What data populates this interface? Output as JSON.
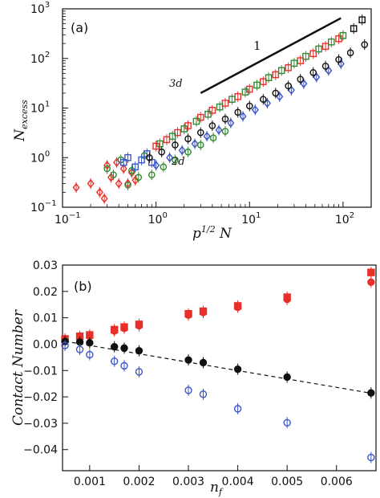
{
  "chart_data": [
    {
      "type": "scatter",
      "panel_label": "(a)",
      "xlabel_base": "p",
      "xlabel_sup": "1/2",
      "xlabel_tail": " N",
      "ylabel_main": "N",
      "ylabel_sub": "excess",
      "xscale": "log",
      "yscale": "log",
      "xlim": [
        0.1,
        200
      ],
      "ylim": [
        0.1,
        1000
      ],
      "xticks": [
        {
          "value": 0.1,
          "base": "10",
          "exp": "−1"
        },
        {
          "value": 1,
          "base": "10",
          "exp": "0"
        },
        {
          "value": 10,
          "base": "10",
          "exp": "1"
        },
        {
          "value": 100,
          "base": "10",
          "exp": "2"
        }
      ],
      "yticks": [
        {
          "value": 0.1,
          "base": "10",
          "exp": "−1"
        },
        {
          "value": 1,
          "base": "10",
          "exp": "0"
        },
        {
          "value": 10,
          "base": "10",
          "exp": "1"
        },
        {
          "value": 100,
          "base": "10",
          "exp": "2"
        },
        {
          "value": 1000,
          "base": "10",
          "exp": "3"
        }
      ],
      "annotations": {
        "label_3d": "3d",
        "label_2d": "2d",
        "slope_label": "1"
      },
      "slope_line": {
        "x": [
          3.0,
          95.0
        ],
        "y": [
          20.0,
          650.0
        ]
      },
      "series": [
        {
          "color": "#e8302a",
          "marker": "diamond",
          "group": "small-N",
          "x": [
            0.14,
            0.2,
            0.25,
            0.28,
            0.3,
            0.33,
            0.38,
            0.4,
            0.45,
            0.5,
            0.55,
            0.6
          ],
          "y": [
            0.25,
            0.3,
            0.2,
            0.15,
            0.7,
            0.4,
            0.8,
            0.3,
            0.6,
            0.3,
            0.5,
            0.35
          ]
        },
        {
          "color": "#2f8a2f",
          "marker": "circle",
          "group": "small-N",
          "x": [
            0.3,
            0.35,
            0.42,
            0.5,
            0.55,
            0.65,
            0.75
          ],
          "y": [
            0.6,
            0.45,
            0.9,
            0.28,
            0.55,
            0.4,
            1.1
          ]
        },
        {
          "color": "#3a55c6",
          "marker": "square",
          "group": "small-N",
          "x": [
            0.45,
            0.5,
            0.6,
            0.7,
            0.8,
            0.9
          ],
          "y": [
            0.8,
            1.0,
            0.65,
            0.9,
            1.2,
            0.8
          ]
        },
        {
          "color": "#e8302a",
          "marker": "square",
          "group": "3d",
          "x": [
            1.0,
            1.3,
            1.7,
            2.2,
            3.0,
            4.0,
            5.5,
            7.5,
            10,
            14,
            19,
            26,
            35,
            48,
            65,
            90
          ],
          "y": [
            1.7,
            2.3,
            3.2,
            4.4,
            6.5,
            9.0,
            12.5,
            17,
            24,
            34,
            47,
            65,
            90,
            125,
            175,
            250
          ]
        },
        {
          "color": "#2f8a2f",
          "marker": "square",
          "group": "3d",
          "x": [
            1.1,
            1.5,
            2.0,
            2.7,
            3.6,
            4.8,
            6.5,
            9,
            12,
            16,
            22,
            30,
            40,
            55,
            75,
            100
          ],
          "y": [
            1.9,
            2.7,
            3.8,
            5.4,
            7.5,
            10.5,
            15,
            21,
            29,
            41,
            57,
            80,
            110,
            155,
            215,
            290
          ]
        },
        {
          "color": "#111111",
          "marker": "square",
          "group": "3d",
          "x": [
            130,
            160
          ],
          "y": [
            400,
            600
          ]
        },
        {
          "color": "#3a55c6",
          "marker": "diamond",
          "group": "2d",
          "x": [
            1.0,
            1.4,
            1.9,
            2.6,
            3.5,
            4.7,
            6.3,
            8.5,
            11.5,
            15.5,
            21,
            28,
            38,
            52,
            70,
            95
          ],
          "y": [
            0.7,
            1.0,
            1.4,
            1.9,
            2.7,
            3.6,
            5.0,
            6.8,
            9.2,
            12.5,
            17,
            23,
            31,
            42,
            57,
            78
          ]
        },
        {
          "color": "#2f8a2f",
          "marker": "circle",
          "group": "2d",
          "x": [
            0.9,
            1.2,
            1.6,
            2.2,
            3.0,
            4.1,
            5.5
          ],
          "y": [
            0.45,
            0.65,
            0.9,
            1.3,
            1.8,
            2.5,
            3.4
          ]
        },
        {
          "color": "#111111",
          "marker": "circle",
          "group": "2d",
          "x": [
            0.85,
            1.15,
            1.6,
            2.2,
            3.0,
            4.0,
            5.5,
            7.5,
            10,
            14,
            19,
            26,
            35,
            48,
            65,
            90,
            120,
            170
          ],
          "y": [
            1.0,
            1.3,
            1.8,
            2.4,
            3.2,
            4.4,
            6.0,
            8.2,
            11,
            15,
            20,
            28,
            38,
            52,
            70,
            95,
            130,
            190
          ]
        }
      ]
    },
    {
      "type": "scatter",
      "panel_label": "(b)",
      "xlabel_base": "n",
      "xlabel_sub": "f",
      "ylabel": "Contact Number",
      "xlim": [
        0.00045,
        0.0068
      ],
      "ylim": [
        -0.048,
        0.03
      ],
      "xticks": [
        "0.001",
        "0.002",
        "0.003",
        "0.004",
        "0.005",
        "0.006"
      ],
      "xtick_values": [
        0.001,
        0.002,
        0.003,
        0.004,
        0.005,
        0.006
      ],
      "yticks": [
        "0.03",
        "0.02",
        "0.01",
        "0.00",
        "−0.01",
        "−0.02",
        "−0.03",
        "−0.04"
      ],
      "ytick_values": [
        0.03,
        0.02,
        0.01,
        0.0,
        -0.01,
        -0.02,
        -0.03,
        -0.04
      ],
      "series": [
        {
          "color": "#e8302a",
          "marker": "square",
          "filled": true,
          "x": [
            0.0005,
            0.0008,
            0.001,
            0.0015,
            0.0017,
            0.002,
            0.003,
            0.0033,
            0.004,
            0.005,
            0.0067
          ],
          "y": [
            0.002,
            0.003,
            0.0035,
            0.0055,
            0.0065,
            0.0075,
            0.0115,
            0.0125,
            0.0145,
            0.0178,
            0.0272
          ]
        },
        {
          "color": "#e8302a",
          "marker": "circle",
          "filled": true,
          "x": [
            0.0005,
            0.0008,
            0.001,
            0.0015,
            0.0017,
            0.002,
            0.003,
            0.0033,
            0.004,
            0.005,
            0.0067
          ],
          "y": [
            0.0015,
            0.0025,
            0.003,
            0.005,
            0.006,
            0.007,
            0.011,
            0.012,
            0.014,
            0.017,
            0.0235
          ]
        },
        {
          "color": "#111111",
          "marker": "circle",
          "filled": true,
          "x": [
            0.0005,
            0.0008,
            0.001,
            0.0015,
            0.0017,
            0.002,
            0.003,
            0.0033,
            0.004,
            0.005,
            0.0067
          ],
          "y": [
            0.001,
            0.0008,
            0.0005,
            -0.001,
            -0.0015,
            -0.0025,
            -0.006,
            -0.007,
            -0.0095,
            -0.0125,
            -0.0185
          ]
        },
        {
          "color": "#3a55c6",
          "marker": "circle",
          "filled": false,
          "x": [
            0.0005,
            0.0008,
            0.001,
            0.0015,
            0.0017,
            0.002,
            0.003,
            0.0033,
            0.004,
            0.005,
            0.0067
          ],
          "y": [
            -0.0005,
            -0.002,
            -0.004,
            -0.0065,
            -0.0082,
            -0.0105,
            -0.0175,
            -0.019,
            -0.0245,
            -0.0298,
            -0.043
          ]
        }
      ],
      "fit_line": {
        "x": [
          0.0005,
          0.0067
        ],
        "y": [
          0.0011,
          -0.0186
        ],
        "style": "dashed"
      }
    }
  ]
}
